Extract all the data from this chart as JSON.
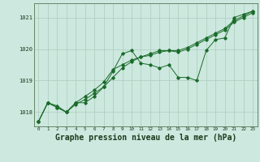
{
  "background_color": "#cce8df",
  "grid_color": "#aaccbb",
  "line_color": "#1a6b2a",
  "marker_color": "#1a6b2a",
  "xlabel": "Graphe pression niveau de la mer (hPa)",
  "xlabel_fontsize": 7.0,
  "ylim": [
    1017.55,
    1021.45
  ],
  "xlim": [
    -0.5,
    23.5
  ],
  "yticks": [
    1018,
    1019,
    1020,
    1021
  ],
  "xticks": [
    0,
    1,
    2,
    3,
    4,
    5,
    6,
    7,
    8,
    9,
    10,
    11,
    12,
    13,
    14,
    15,
    16,
    17,
    18,
    19,
    20,
    21,
    22,
    23
  ],
  "series": [
    [
      1017.7,
      1018.3,
      1018.2,
      1018.0,
      1018.3,
      1018.3,
      1018.5,
      1018.8,
      1019.3,
      1019.85,
      1019.95,
      1019.55,
      1019.5,
      1019.4,
      1019.5,
      1019.1,
      1019.1,
      1019.0,
      1019.95,
      1020.3,
      1020.35,
      1021.0,
      1021.1,
      1021.2
    ],
    [
      1017.7,
      1018.3,
      1018.15,
      1018.0,
      1018.3,
      1018.5,
      1018.7,
      1018.95,
      1019.35,
      1019.5,
      1019.65,
      1019.75,
      1019.8,
      1019.9,
      1019.95,
      1019.95,
      1020.05,
      1020.2,
      1020.35,
      1020.5,
      1020.65,
      1020.9,
      1021.05,
      1021.2
    ],
    [
      1017.7,
      1018.3,
      1018.15,
      1018.0,
      1018.25,
      1018.4,
      1018.6,
      1018.8,
      1019.1,
      1019.4,
      1019.6,
      1019.75,
      1019.85,
      1019.95,
      1019.95,
      1019.9,
      1020.0,
      1020.15,
      1020.3,
      1020.45,
      1020.6,
      1020.85,
      1021.0,
      1021.15
    ]
  ]
}
